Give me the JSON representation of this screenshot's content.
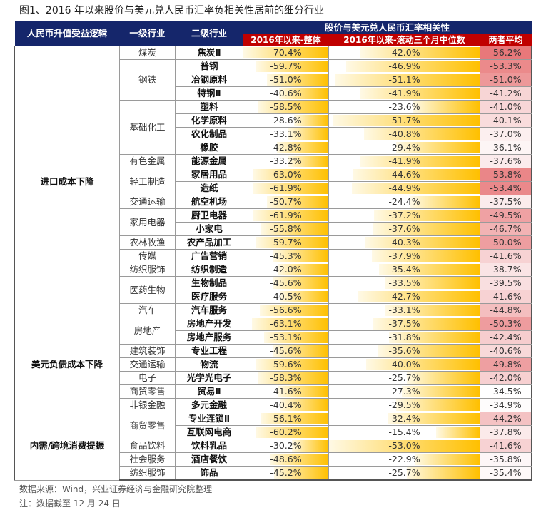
{
  "title": "图1、2016 年以来股价与美元兑人民币汇率负相关性居前的细分行业",
  "header": {
    "logic": "人民币升值受益逻辑",
    "l1": "一级行业",
    "l2": "二级行业",
    "corr": "股价与美元兑人民币汇率相关性",
    "c1": "2016年以来-整体",
    "c2": "2016年以来-滚动三个月中位数",
    "avg": "两者平均"
  },
  "colors": {
    "header": "#15266b",
    "subheader": "#c00000",
    "bar": "#ffc000",
    "avg_high": "#e8787a"
  },
  "groups": [
    {
      "logic": "进口成本下降",
      "industries": [
        {
          "name": "煤炭",
          "subs": [
            {
              "name": "焦炭Ⅱ",
              "v1": "-70.4%",
              "v2": "-42.0%",
              "avg": "-56.2%"
            }
          ]
        },
        {
          "name": "钢铁",
          "subs": [
            {
              "name": "普钢",
              "v1": "-59.7%",
              "v2": "-46.9%",
              "avg": "-53.3%"
            },
            {
              "name": "冶钢原料",
              "v1": "-51.0%",
              "v2": "-51.1%",
              "avg": "-51.0%"
            },
            {
              "name": "特钢Ⅱ",
              "v1": "-40.6%",
              "v2": "-41.9%",
              "avg": "-41.2%"
            }
          ]
        },
        {
          "name": "基础化工",
          "subs": [
            {
              "name": "塑料",
              "v1": "-58.5%",
              "v2": "-23.6%",
              "avg": "-41.0%"
            },
            {
              "name": "化学原料",
              "v1": "-28.6%",
              "v2": "-51.7%",
              "avg": "-40.1%"
            },
            {
              "name": "农化制品",
              "v1": "-33.1%",
              "v2": "-40.8%",
              "avg": "-37.0%"
            },
            {
              "name": "橡胶",
              "v1": "-42.8%",
              "v2": "-29.4%",
              "avg": "-36.1%"
            }
          ]
        },
        {
          "name": "有色金属",
          "subs": [
            {
              "name": "能源金属",
              "v1": "-33.2%",
              "v2": "-41.9%",
              "avg": "-37.6%"
            }
          ]
        },
        {
          "name": "轻工制造",
          "subs": [
            {
              "name": "家居用品",
              "v1": "-63.0%",
              "v2": "-44.6%",
              "avg": "-53.8%"
            },
            {
              "name": "造纸",
              "v1": "-61.9%",
              "v2": "-44.9%",
              "avg": "-53.4%"
            }
          ]
        },
        {
          "name": "交通运输",
          "subs": [
            {
              "name": "航空机场",
              "v1": "-50.7%",
              "v2": "-24.4%",
              "avg": "-37.5%"
            }
          ]
        },
        {
          "name": "家用电器",
          "subs": [
            {
              "name": "厨卫电器",
              "v1": "-61.9%",
              "v2": "-37.2%",
              "avg": "-49.5%"
            },
            {
              "name": "小家电",
              "v1": "-55.8%",
              "v2": "-37.6%",
              "avg": "-46.7%"
            }
          ]
        },
        {
          "name": "农林牧渔",
          "subs": [
            {
              "name": "农产品加工",
              "v1": "-59.7%",
              "v2": "-40.3%",
              "avg": "-50.0%"
            }
          ]
        },
        {
          "name": "传媒",
          "subs": [
            {
              "name": "广告营销",
              "v1": "-45.3%",
              "v2": "-37.9%",
              "avg": "-41.6%"
            }
          ]
        },
        {
          "name": "纺织服饰",
          "subs": [
            {
              "name": "纺织制造",
              "v1": "-42.0%",
              "v2": "-35.4%",
              "avg": "-38.7%"
            }
          ]
        },
        {
          "name": "医药生物",
          "subs": [
            {
              "name": "生物制品",
              "v1": "-45.6%",
              "v2": "-33.5%",
              "avg": "-39.5%"
            },
            {
              "name": "医疗服务",
              "v1": "-40.5%",
              "v2": "-42.7%",
              "avg": "-41.6%"
            }
          ]
        },
        {
          "name": "汽车",
          "subs": [
            {
              "name": "汽车服务",
              "v1": "-56.6%",
              "v2": "-33.1%",
              "avg": "-44.8%"
            }
          ]
        }
      ]
    },
    {
      "logic": "美元负债成本下降",
      "industries": [
        {
          "name": "房地产",
          "subs": [
            {
              "name": "房地产开发",
              "v1": "-63.1%",
              "v2": "-37.5%",
              "avg": "-50.3%"
            },
            {
              "name": "房地产服务",
              "v1": "-53.1%",
              "v2": "-31.8%",
              "avg": "-42.4%"
            }
          ]
        },
        {
          "name": "建筑装饰",
          "subs": [
            {
              "name": "专业工程",
              "v1": "-45.6%",
              "v2": "-35.6%",
              "avg": "-40.6%"
            }
          ]
        },
        {
          "name": "交通运输",
          "subs": [
            {
              "name": "物流",
              "v1": "-59.6%",
              "v2": "-40.0%",
              "avg": "-49.8%"
            }
          ]
        },
        {
          "name": "电子",
          "subs": [
            {
              "name": "光学光电子",
              "v1": "-58.3%",
              "v2": "-25.7%",
              "avg": "-42.0%"
            }
          ]
        },
        {
          "name": "商贸零售",
          "subs": [
            {
              "name": "贸易Ⅱ",
              "v1": "-41.6%",
              "v2": "-27.3%",
              "avg": "-34.5%"
            }
          ]
        },
        {
          "name": "非银金融",
          "subs": [
            {
              "name": "多元金融",
              "v1": "-40.4%",
              "v2": "-29.5%",
              "avg": "-34.9%"
            }
          ]
        }
      ]
    },
    {
      "logic": "内需/跨境消费提振",
      "industries": [
        {
          "name": "商贸零售",
          "subs": [
            {
              "name": "专业连锁Ⅱ",
              "v1": "-56.1%",
              "v2": "-32.4%",
              "avg": "-44.2%"
            },
            {
              "name": "互联网电商",
              "v1": "-60.2%",
              "v2": "-15.4%",
              "avg": "-37.8%"
            }
          ]
        },
        {
          "name": "食品饮料",
          "subs": [
            {
              "name": "饮料乳品",
              "v1": "-30.2%",
              "v2": "-53.0%",
              "avg": "-41.6%"
            }
          ]
        },
        {
          "name": "社会服务",
          "subs": [
            {
              "name": "酒店餐饮",
              "v1": "-48.6%",
              "v2": "-22.9%",
              "avg": "-35.8%"
            }
          ]
        },
        {
          "name": "纺织服饰",
          "subs": [
            {
              "name": "饰品",
              "v1": "-45.2%",
              "v2": "-25.7%",
              "avg": "-35.4%"
            }
          ]
        }
      ]
    }
  ],
  "footer": {
    "source": "数据来源：Wind，兴业证券经济与金融研究院整理",
    "note": "注：数据截至 12 月 24 日"
  }
}
